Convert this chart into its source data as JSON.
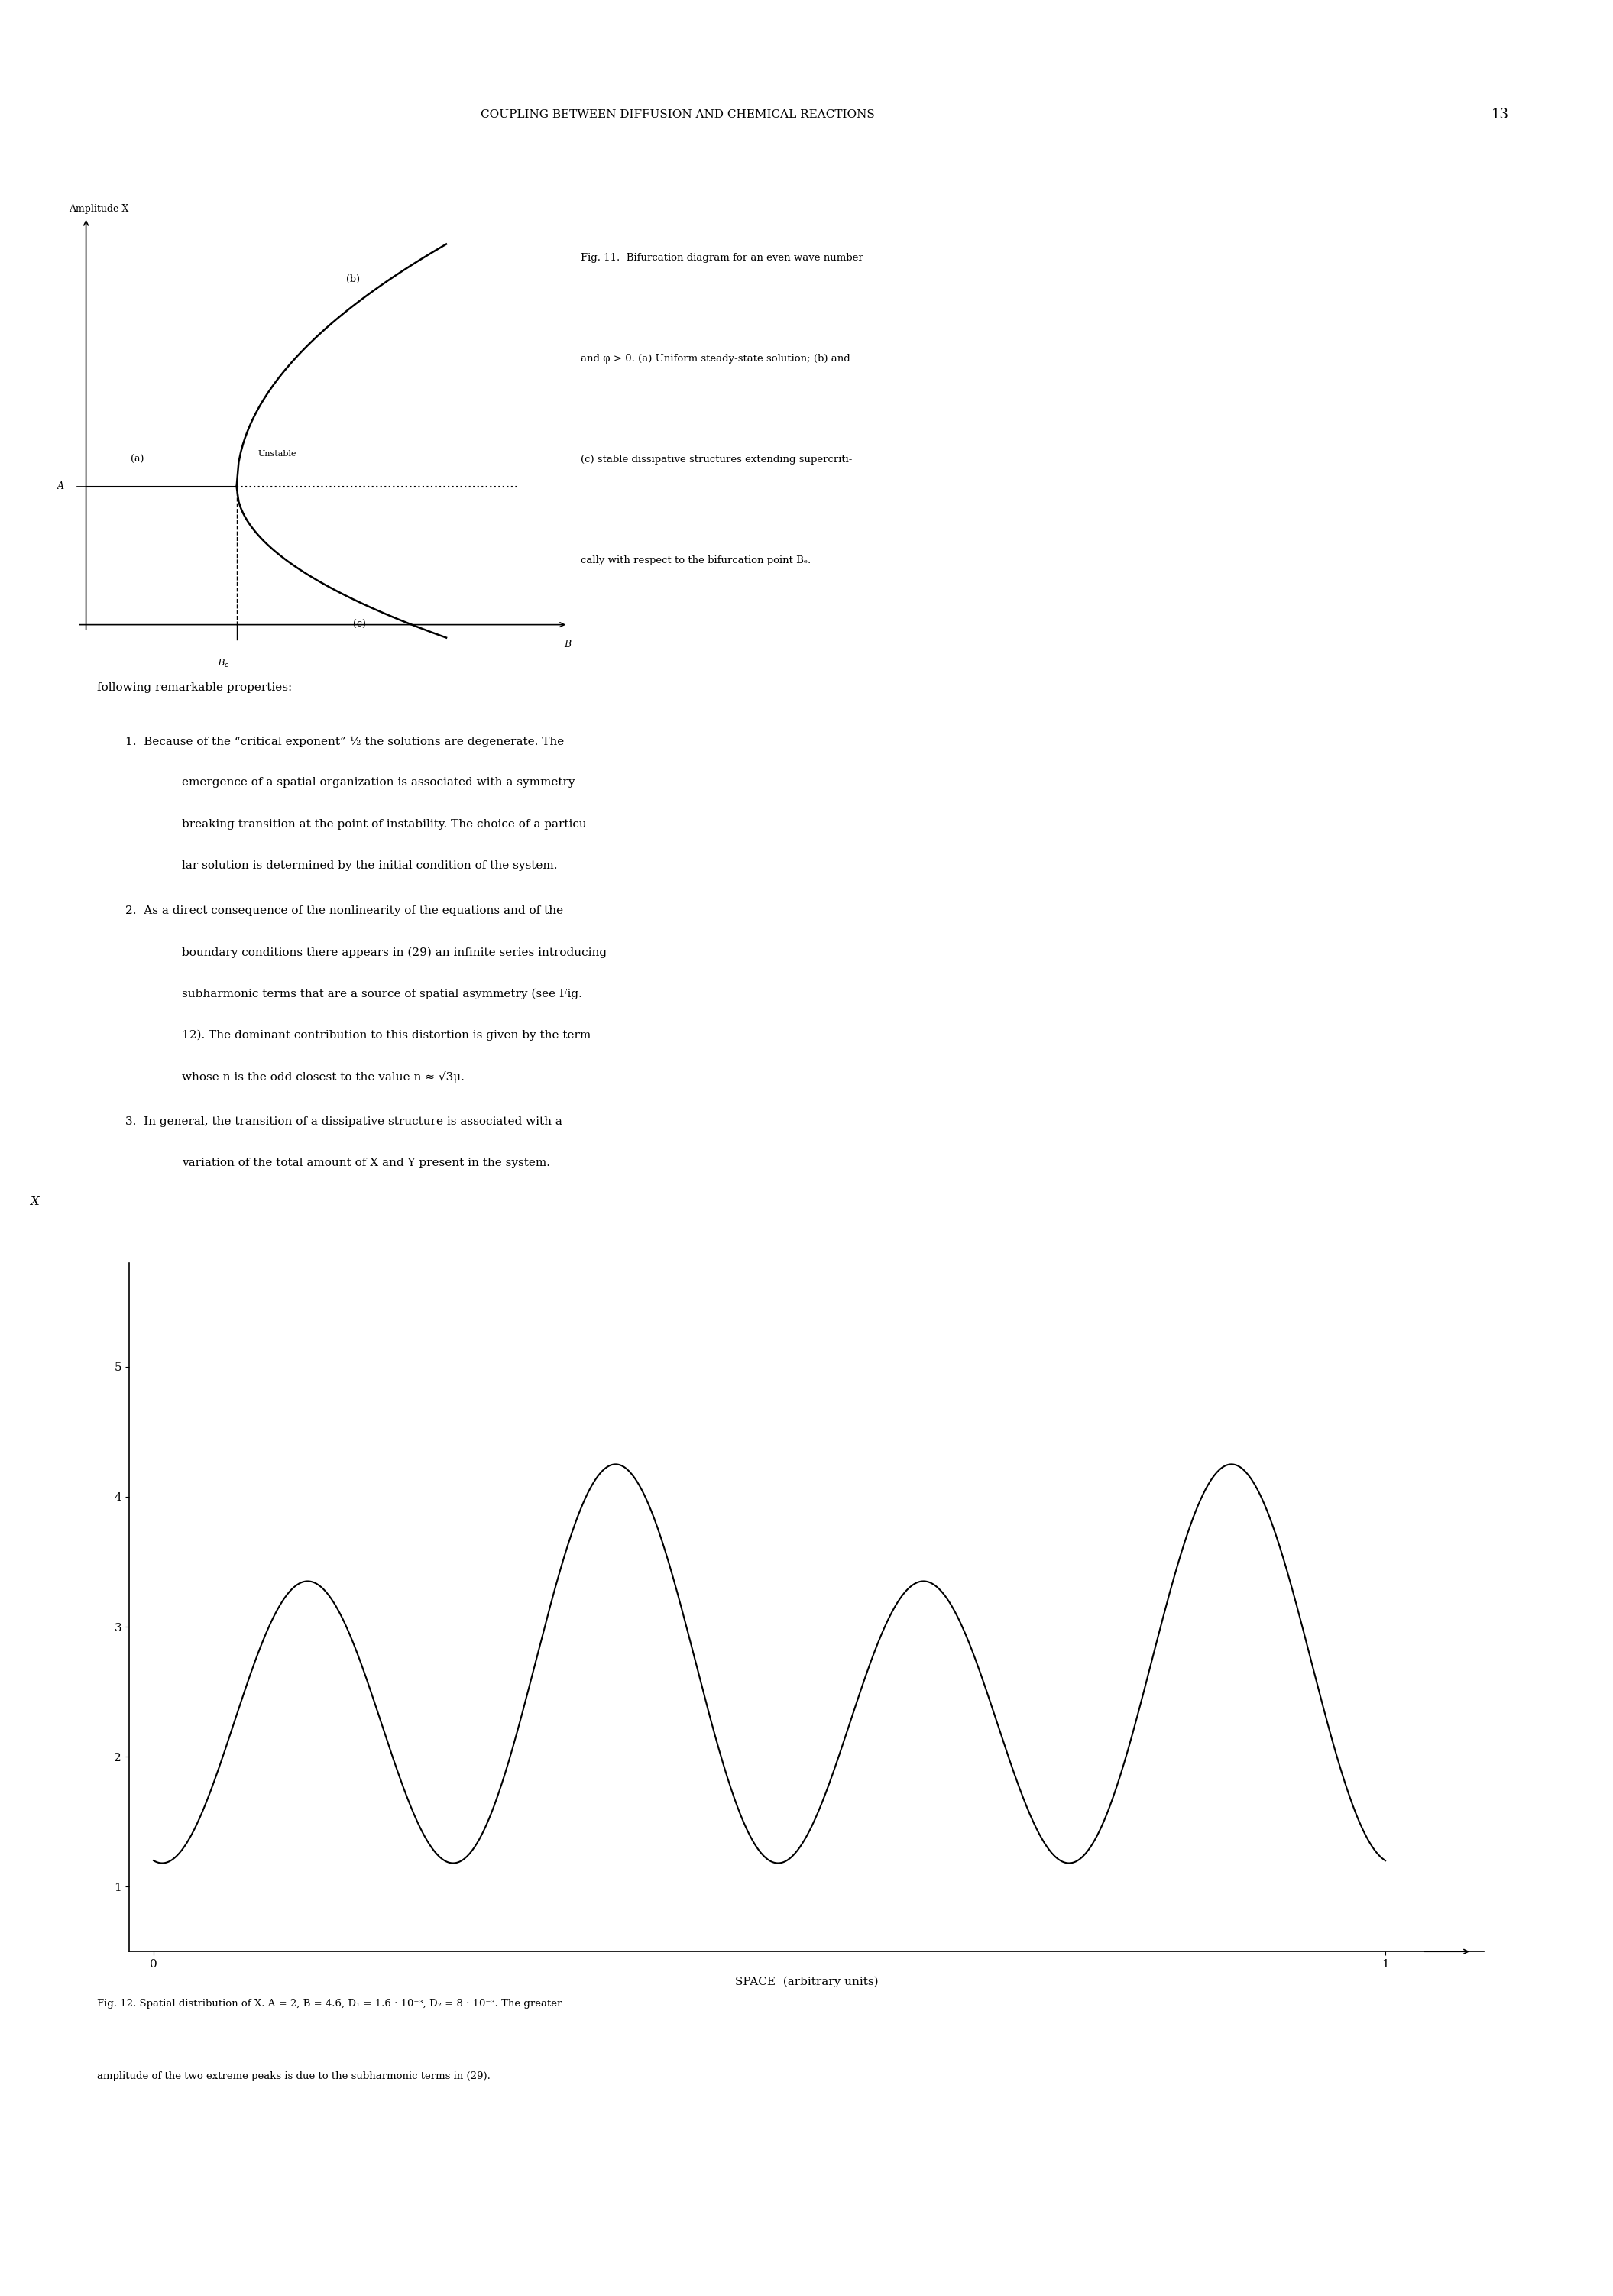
{
  "page_title": "COUPLING BETWEEN DIFFUSION AND CHEMICAL REACTIONS",
  "page_number": "13",
  "fig11_caption": "Fig. 11.  Bifurcation diagram for an even wave number\nand φ > 0. (a) Uniform steady-state solution; (b) and\n(c) stable dissipative structures extending supercriti-\ncally with respect to the bifurcation point Bₑ.",
  "text_intro": "following remarkable properties:",
  "item1_line1": "1.  Because of the “critical exponent” ½ the solutions are degenerate. The",
  "item1_line2": "emergence of a spatial organization is associated with a symmetry-",
  "item1_line3": "breaking transition at the point of instability. The choice of a particu-",
  "item1_line4": "lar solution is determined by the initial condition of the system.",
  "item2_line1": "2.  As a direct consequence of the nonlinearity of the equations and of the",
  "item2_line2": "boundary conditions there appears in (29) an infinite series introducing",
  "item2_line3": "subharmonic terms that are a source of spatial asymmetry (see Fig.",
  "item2_line4": "12). The dominant contribution to this distortion is given by the term",
  "item2_line5": "whose n is the odd closest to the value n ≈ √3μ.",
  "item3_line1": "3.  In general, the transition of a dissipative structure is associated with a",
  "item3_line2": "variation of the total amount of X and Y present in the system.",
  "fig12_caption_line1": "Fig. 12. Spatial distribution of X. A = 2, B = 4.6, D₁ = 1.6 · 10⁻³, D₂ = 8 · 10⁻³. The greater",
  "fig12_caption_line2": "amplitude of the two extreme peaks is due to the subharmonic terms in (29).",
  "background_color": "#ffffff",
  "text_color": "#000000"
}
